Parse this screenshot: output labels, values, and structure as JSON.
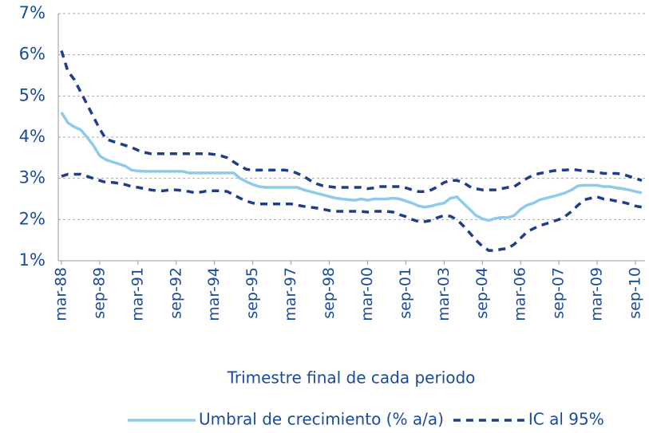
{
  "chart_data": {
    "type": "line",
    "x_label": "Trimestre final de cada periodo",
    "categories": [
      "mar-88",
      null,
      null,
      null,
      null,
      null,
      "sep-89",
      null,
      null,
      null,
      null,
      null,
      "mar-91",
      null,
      null,
      null,
      null,
      null,
      "sep-92",
      null,
      null,
      null,
      null,
      null,
      "mar-94",
      null,
      null,
      null,
      null,
      null,
      "sep-95",
      null,
      null,
      null,
      null,
      null,
      "mar-97",
      null,
      null,
      null,
      null,
      null,
      "sep-98",
      null,
      null,
      null,
      null,
      null,
      "mar-00",
      null,
      null,
      null,
      null,
      null,
      "sep-01",
      null,
      null,
      null,
      null,
      null,
      "mar-03",
      null,
      null,
      null,
      null,
      null,
      "sep-04",
      null,
      null,
      null,
      null,
      null,
      "mar-06",
      null,
      null,
      null,
      null,
      null,
      "sep-07",
      null,
      null,
      null,
      null,
      null,
      "mar-09",
      null,
      null,
      null,
      null,
      null,
      "sep-10",
      null
    ],
    "series": [
      {
        "name": "Umbral de crecimiento (% a/a)",
        "color": "#8ecbea",
        "dashed": false,
        "values": [
          4.6,
          4.35,
          4.25,
          4.18,
          4.0,
          3.8,
          3.55,
          3.45,
          3.4,
          3.35,
          3.3,
          3.2,
          3.18,
          3.17,
          3.17,
          3.17,
          3.17,
          3.17,
          3.17,
          3.17,
          3.13,
          3.13,
          3.13,
          3.13,
          3.13,
          3.13,
          3.13,
          3.13,
          3.0,
          2.92,
          2.85,
          2.8,
          2.78,
          2.78,
          2.78,
          2.78,
          2.78,
          2.78,
          2.72,
          2.68,
          2.64,
          2.6,
          2.56,
          2.52,
          2.5,
          2.48,
          2.47,
          2.5,
          2.47,
          2.5,
          2.5,
          2.5,
          2.52,
          2.5,
          2.45,
          2.4,
          2.33,
          2.3,
          2.33,
          2.37,
          2.4,
          2.52,
          2.55,
          2.4,
          2.25,
          2.1,
          2.02,
          1.98,
          2.03,
          2.05,
          2.05,
          2.1,
          2.25,
          2.35,
          2.4,
          2.48,
          2.52,
          2.56,
          2.6,
          2.65,
          2.72,
          2.82,
          2.83,
          2.83,
          2.83,
          2.8,
          2.8,
          2.77,
          2.75,
          2.72,
          2.68,
          2.65
        ]
      },
      {
        "name": "IC al 95%",
        "color": "#1f3d8a",
        "dashed": true,
        "values": [
          6.1,
          5.6,
          5.4,
          5.1,
          4.8,
          4.5,
          4.2,
          3.95,
          3.9,
          3.85,
          3.8,
          3.75,
          3.68,
          3.63,
          3.6,
          3.6,
          3.6,
          3.6,
          3.6,
          3.6,
          3.6,
          3.6,
          3.6,
          3.6,
          3.58,
          3.55,
          3.5,
          3.4,
          3.3,
          3.22,
          3.2,
          3.2,
          3.2,
          3.2,
          3.2,
          3.2,
          3.18,
          3.12,
          3.05,
          2.95,
          2.87,
          2.82,
          2.8,
          2.78,
          2.78,
          2.78,
          2.78,
          2.78,
          2.75,
          2.77,
          2.8,
          2.8,
          2.8,
          2.8,
          2.77,
          2.72,
          2.68,
          2.68,
          2.72,
          2.8,
          2.9,
          2.95,
          2.95,
          2.9,
          2.8,
          2.75,
          2.72,
          2.72,
          2.72,
          2.75,
          2.78,
          2.8,
          2.9,
          3.0,
          3.08,
          3.12,
          3.15,
          3.18,
          3.2,
          3.2,
          3.22,
          3.2,
          3.18,
          3.17,
          3.15,
          3.12,
          3.12,
          3.12,
          3.1,
          3.05,
          3.0,
          2.95
        ],
        "lower": [
          3.05,
          3.1,
          3.1,
          3.1,
          3.05,
          3.0,
          2.95,
          2.9,
          2.9,
          2.88,
          2.85,
          2.8,
          2.78,
          2.75,
          2.72,
          2.7,
          2.7,
          2.72,
          2.72,
          2.7,
          2.68,
          2.65,
          2.67,
          2.7,
          2.7,
          2.7,
          2.68,
          2.6,
          2.52,
          2.45,
          2.4,
          2.38,
          2.38,
          2.38,
          2.38,
          2.38,
          2.38,
          2.35,
          2.32,
          2.3,
          2.28,
          2.25,
          2.22,
          2.2,
          2.2,
          2.2,
          2.2,
          2.2,
          2.18,
          2.2,
          2.2,
          2.2,
          2.18,
          2.12,
          2.07,
          2.0,
          1.95,
          1.95,
          1.98,
          2.05,
          2.1,
          2.08,
          2.0,
          1.85,
          1.68,
          1.5,
          1.35,
          1.25,
          1.25,
          1.28,
          1.3,
          1.4,
          1.55,
          1.7,
          1.78,
          1.85,
          1.9,
          1.95,
          2.0,
          2.08,
          2.2,
          2.35,
          2.48,
          2.52,
          2.55,
          2.5,
          2.48,
          2.45,
          2.42,
          2.38,
          2.33,
          2.3
        ]
      }
    ],
    "ylim": [
      1,
      7
    ],
    "yticks": [
      {
        "value": 1,
        "label": "1%"
      },
      {
        "value": 2,
        "label": "2%"
      },
      {
        "value": 3,
        "label": "3%"
      },
      {
        "value": 4,
        "label": "4%"
      },
      {
        "value": 5,
        "label": "5%"
      },
      {
        "value": 6,
        "label": "6%"
      },
      {
        "value": 7,
        "label": "7%"
      }
    ],
    "grid": true,
    "legend": "bottom"
  }
}
